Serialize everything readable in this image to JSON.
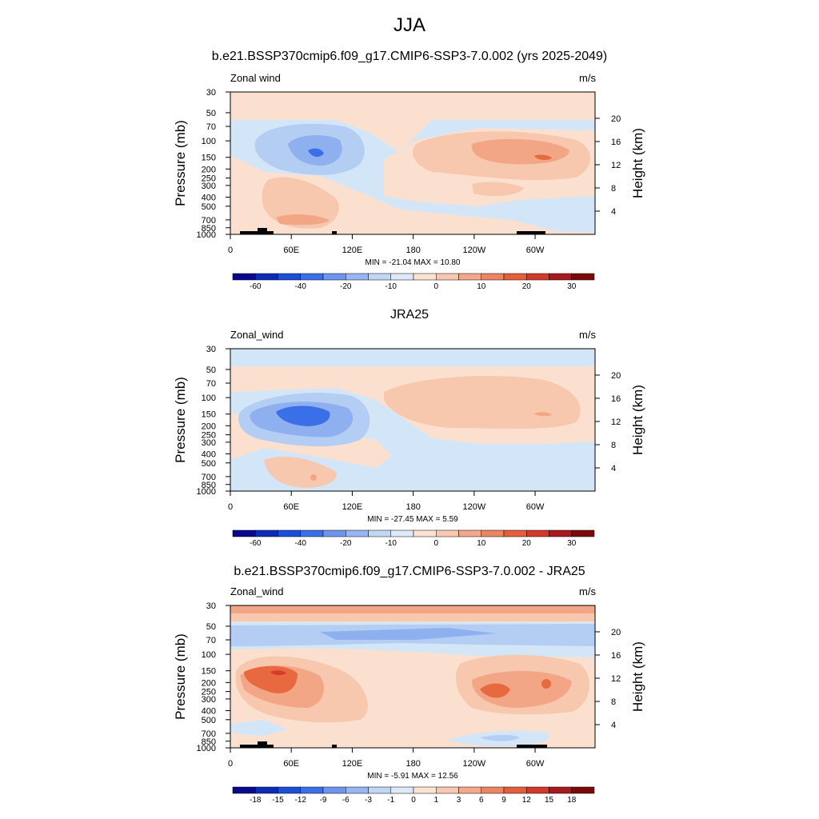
{
  "season_title": "JJA",
  "chart_data": [
    {
      "type": "heatmap",
      "title": "b.e21.BSSP370cmip6.f09_g17.CMIP6-SSP3-7.0.002 (yrs 2025-2049)",
      "variable": "Zonal wind",
      "units": "m/s",
      "xlabel": "",
      "ylabel": "Pressure (mb)",
      "ylabel_right": "Height (km)",
      "x_ticks": [
        "0",
        "60E",
        "120E",
        "180",
        "120W",
        "60W"
      ],
      "y_ticks": [
        "30",
        "50",
        "70",
        "100",
        "150",
        "200",
        "250",
        "300",
        "400",
        "500",
        "700",
        "850",
        "1000"
      ],
      "y_ticks_right": [
        "20",
        "16",
        "12",
        "8",
        "4"
      ],
      "y_log_scale": true,
      "stats_text": "MIN = -21.04  MAX =  10.80",
      "min": -21.04,
      "max": 10.8,
      "colorbar_labels": [
        "-60",
        "-40",
        "-20",
        "-10",
        "0",
        "10",
        "20",
        "30"
      ],
      "features": [
        {
          "kind": "negative_max",
          "lon": 80,
          "p": 150,
          "value": -20
        },
        {
          "kind": "positive_max",
          "lon": 300,
          "p": 150,
          "value": 10
        },
        {
          "kind": "positive_max",
          "lon": 50,
          "p": 700,
          "value": 5
        }
      ]
    },
    {
      "type": "heatmap",
      "title": "JRA25",
      "variable": "Zonal_wind",
      "units": "m/s",
      "xlabel": "",
      "ylabel": "Pressure (mb)",
      "ylabel_right": "Height (km)",
      "x_ticks": [
        "0",
        "60E",
        "120E",
        "180",
        "120W",
        "60W"
      ],
      "y_ticks": [
        "30",
        "50",
        "70",
        "100",
        "150",
        "200",
        "250",
        "300",
        "400",
        "500",
        "700",
        "850",
        "1000"
      ],
      "y_ticks_right": [
        "20",
        "16",
        "12",
        "8",
        "4"
      ],
      "y_log_scale": true,
      "stats_text": "MIN = -27.45  MAX =   5.59",
      "min": -27.45,
      "max": 5.59,
      "colorbar_labels": [
        "-60",
        "-40",
        "-20",
        "-10",
        "0",
        "10",
        "20",
        "30"
      ],
      "features": [
        {
          "kind": "negative_max",
          "lon": 70,
          "p": 150,
          "value": -25
        },
        {
          "kind": "positive_max",
          "lon": 300,
          "p": 150,
          "value": 5
        }
      ]
    },
    {
      "type": "heatmap",
      "title": "b.e21.BSSP370cmip6.f09_g17.CMIP6-SSP3-7.0.002 - JRA25",
      "variable": "Zonal_wind",
      "units": "m/s",
      "xlabel": "",
      "ylabel": "Pressure (mb)",
      "ylabel_right": "Height (km)",
      "x_ticks": [
        "0",
        "60E",
        "120E",
        "180",
        "120W",
        "60W"
      ],
      "y_ticks": [
        "30",
        "50",
        "70",
        "100",
        "150",
        "200",
        "250",
        "300",
        "400",
        "500",
        "700",
        "850",
        "1000"
      ],
      "y_ticks_right": [
        "20",
        "16",
        "12",
        "8",
        "4"
      ],
      "y_log_scale": true,
      "stats_text": "MIN =  -5.91  MAX =  12.56",
      "min": -5.91,
      "max": 12.56,
      "colorbar_labels": [
        "-18",
        "-15",
        "-12",
        "-9",
        "-6",
        "-3",
        "-1",
        "0",
        "1",
        "3",
        "6",
        "9",
        "12",
        "15",
        "18"
      ],
      "features": [
        {
          "kind": "positive_max",
          "lon": 50,
          "p": 150,
          "value": 12
        },
        {
          "kind": "positive_max",
          "lon": 260,
          "p": 200,
          "value": 9
        },
        {
          "kind": "negative_band",
          "lon": 180,
          "p": 70,
          "value": -3
        }
      ]
    }
  ]
}
